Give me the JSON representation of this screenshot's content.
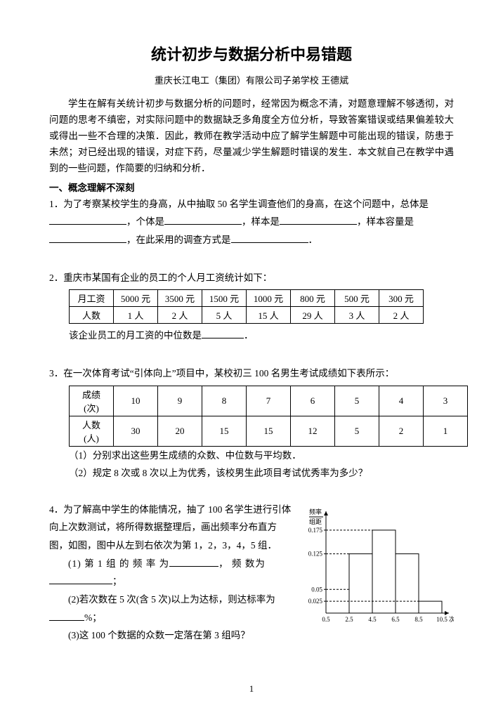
{
  "title": "统计初步与数据分析中易错题",
  "subtitle": "重庆长江电工（集团）有限公司子弟学校  王德斌",
  "intro": "学生在解有关统计初步与数据分析的问题时，经常因为概念不清，对题意理解不够透彻，对问题的思考不缜密，对实际问题中的数据缺乏多角度全方位分析，导致答案错误或结果偏差较大或得出一些不合理的决策．因此，教师在教学活动中应了解学生解题中可能出现的错误，防患于未然；对已经出现的错误，对症下药，尽量减少学生解题时错误的发生．本文就自己在教学中遇到的一些问题，作简要的归纳和分析．",
  "section1_head": "一、概念理解不深刻",
  "q1_a": "1．为了考察某校学生的身高，从中抽取 50 名学生调查他们的身高，在这个问题中，总体是",
  "q1_b": "，个体是",
  "q1_c": "，样本是",
  "q1_d": "，样本容量是",
  "q1_e": "，在此采用的调查方式是",
  "q1_f": "．",
  "q2_head": "2．重庆市某国有企业的员工的个人月工资统计如下：",
  "q2_table": {
    "header": [
      "月工资",
      "5000 元",
      "3500 元",
      "1500 元",
      "1000 元",
      "800 元",
      "500 元",
      "300 元"
    ],
    "row": [
      "人数",
      "1 人",
      "2 人",
      "5 人",
      "15 人",
      "29 人",
      "3 人",
      "2 人"
    ]
  },
  "q2_after_a": "该企业员工的月工资的中位数是",
  "q2_after_b": "．",
  "q3_head": "3．在一次体育考试“引体向上”项目中，某校初三 100 名男生考试成绩如下表所示：",
  "q3_table": {
    "r1": [
      "成绩(次)",
      "10",
      "9",
      "8",
      "7",
      "6",
      "5",
      "4",
      "3"
    ],
    "r2": [
      "人数(人)",
      "30",
      "20",
      "15",
      "15",
      "12",
      "5",
      "2",
      "1"
    ]
  },
  "q3_sub1": "（1）分别求出这些男生成绩的众数、中位数与平均数．",
  "q3_sub2": "（2）规定 8 次或 8 次以上为优秀，该校男生此项目考试优秀率为多少？",
  "q4_a": "4．为了解高中学生的体能情况，抽了 100 名学生进行引体向上次数测试，将所得数据整理后，画出频率分布直方图，如图，图中从左到右依次为第 1，2，3，4，5 组．",
  "q4_1a": "(1) 第 1 组 的 频 率 为",
  "q4_1b": "， 频 数为",
  "q4_1c": "；",
  "q4_2a": "(2)若次数在 5 次(含 5 次)以上为达标，则达标率为",
  "q4_2b": "%；",
  "q4_3": "(3)这 100 个数据的众数一定落在第 3 组吗？",
  "histogram": {
    "type": "histogram",
    "y_label_top": "频率",
    "y_label_bot": "组距",
    "x_label": "次数",
    "y_ticks": [
      0.025,
      0.05,
      0.125,
      0.175
    ],
    "x_ticks": [
      0.5,
      2.5,
      4.5,
      6.5,
      8.5,
      10.5
    ],
    "bars": [
      {
        "x0": 2.5,
        "x1": 4.5,
        "h": 0.125
      },
      {
        "x0": 4.5,
        "x1": 6.5,
        "h": 0.175
      },
      {
        "x0": 6.5,
        "x1": 8.5,
        "h": 0.125
      },
      {
        "x0": 8.5,
        "x1": 10.5,
        "h": 0.025
      }
    ],
    "axis_color": "#000000",
    "bar_stroke": "#000000",
    "bar_fill": "#ffffff",
    "grid_dash": "3,2",
    "font_size": 9
  },
  "page_number": "1"
}
